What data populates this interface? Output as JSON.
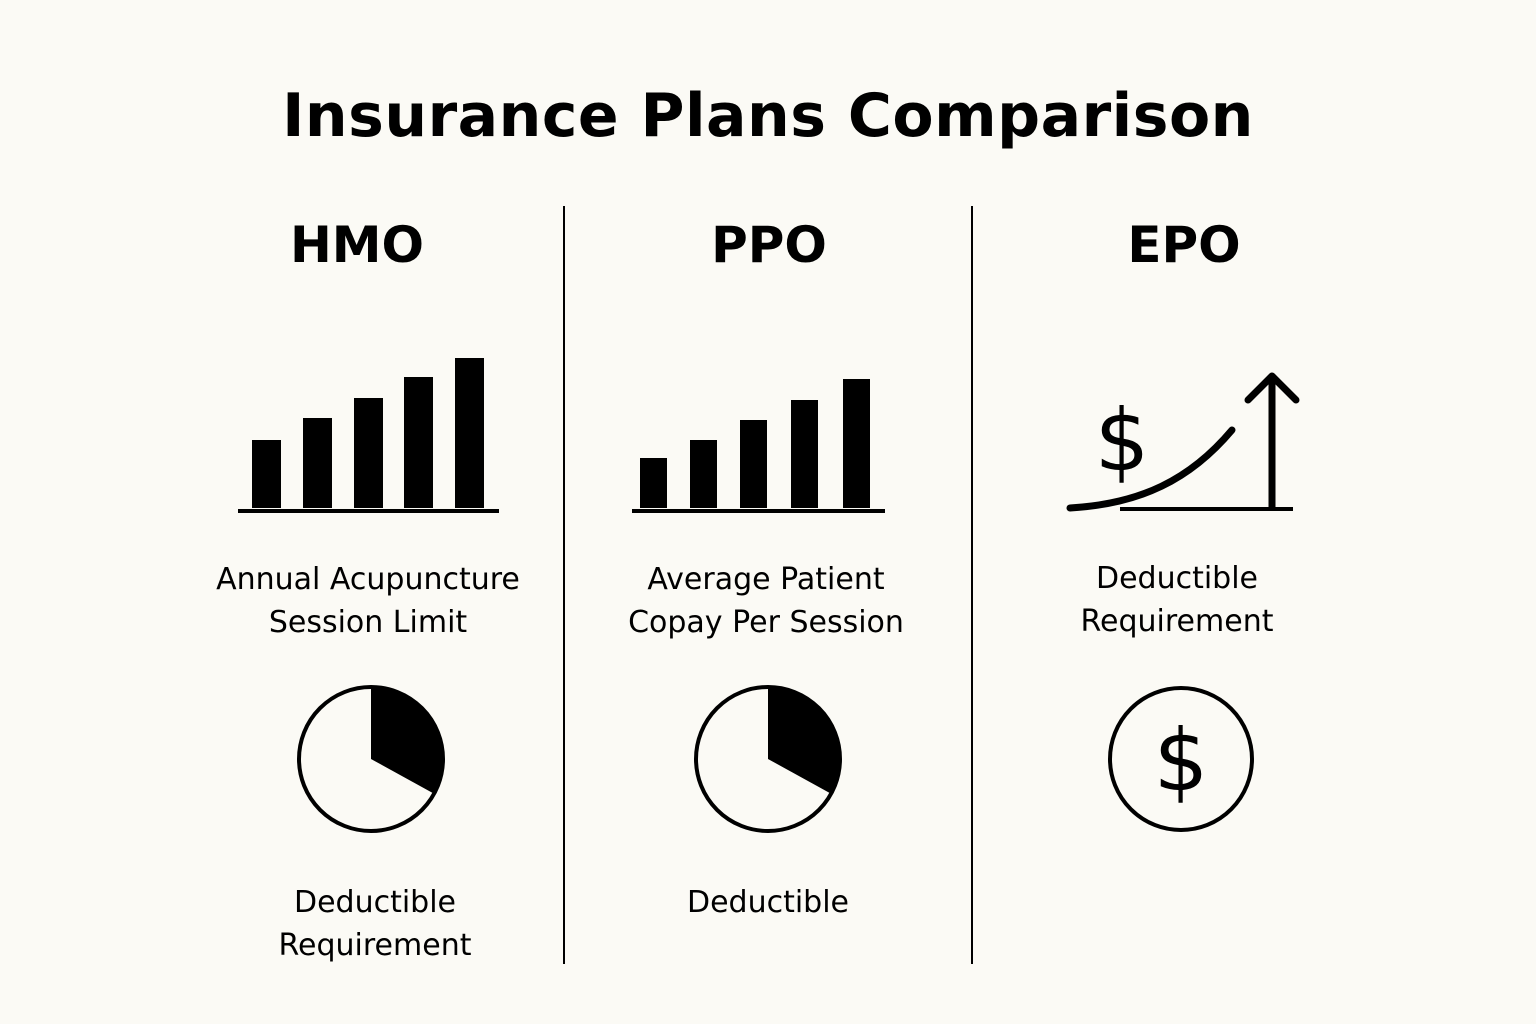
{
  "title": "Insurance Plans Comparison",
  "plans": [
    {
      "name": "HMO",
      "chart_caption_line1": "Annual Acupuncture",
      "chart_caption_line2": "Session Limit",
      "second_caption_line1": "Deductible",
      "second_caption_line2": "Requirement",
      "bar_levels": [
        0.45,
        0.6,
        0.73,
        0.87,
        1.0
      ],
      "pie_fraction": 0.33,
      "icons": [
        "bar-chart-icon",
        "pie-chart-icon"
      ]
    },
    {
      "name": "PPO",
      "chart_caption_line1": "Average Patient",
      "chart_caption_line2": "Copay Per Session",
      "second_caption_line1": "Deductible",
      "second_caption_line2": "",
      "bar_levels": [
        0.39,
        0.53,
        0.68,
        0.84,
        1.0
      ],
      "pie_fraction": 0.33,
      "icons": [
        "bar-chart-icon",
        "pie-chart-icon"
      ]
    },
    {
      "name": "EPO",
      "chart_caption_line1": "Deductible",
      "chart_caption_line2": "Requirement",
      "second_caption_line1": "",
      "second_caption_line2": "",
      "icons": [
        "rising-cost-arrow-icon",
        "dollar-coin-icon"
      ]
    }
  ],
  "glyphs": {
    "dollar": "$"
  },
  "colors": {
    "background": "#fbfaf5",
    "ink": "#000000"
  }
}
